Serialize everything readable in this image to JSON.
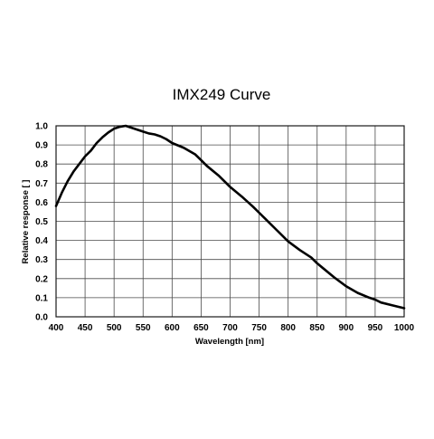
{
  "chart_data": {
    "type": "line",
    "title": "IMX249 Curve",
    "xlabel": "Wavelength [nm]",
    "ylabel": "Relative response [ ]",
    "xlim": [
      400,
      1000
    ],
    "ylim": [
      0.0,
      1.0
    ],
    "x_ticks": [
      400,
      450,
      500,
      550,
      600,
      650,
      700,
      750,
      800,
      850,
      900,
      950,
      1000
    ],
    "y_ticks": [
      "0.0",
      "0.1",
      "0.2",
      "0.3",
      "0.4",
      "0.5",
      "0.6",
      "0.7",
      "0.8",
      "0.9",
      "1.0"
    ],
    "grid": true,
    "legend": "none",
    "series": [
      {
        "color": "#000000",
        "x": [
          400,
          410,
          420,
          430,
          440,
          450,
          460,
          470,
          480,
          490,
          500,
          510,
          520,
          530,
          540,
          550,
          560,
          570,
          580,
          590,
          600,
          620,
          640,
          650,
          660,
          680,
          700,
          720,
          740,
          750,
          760,
          780,
          800,
          820,
          840,
          850,
          860,
          880,
          900,
          920,
          940,
          950,
          960,
          980,
          1000
        ],
        "y": [
          0.58,
          0.65,
          0.71,
          0.76,
          0.8,
          0.84,
          0.87,
          0.91,
          0.94,
          0.965,
          0.985,
          0.995,
          1.0,
          0.99,
          0.98,
          0.97,
          0.96,
          0.955,
          0.945,
          0.93,
          0.91,
          0.885,
          0.85,
          0.82,
          0.79,
          0.74,
          0.68,
          0.63,
          0.575,
          0.545,
          0.515,
          0.455,
          0.395,
          0.35,
          0.31,
          0.28,
          0.255,
          0.205,
          0.16,
          0.125,
          0.1,
          0.09,
          0.075,
          0.06,
          0.045
        ]
      }
    ]
  }
}
